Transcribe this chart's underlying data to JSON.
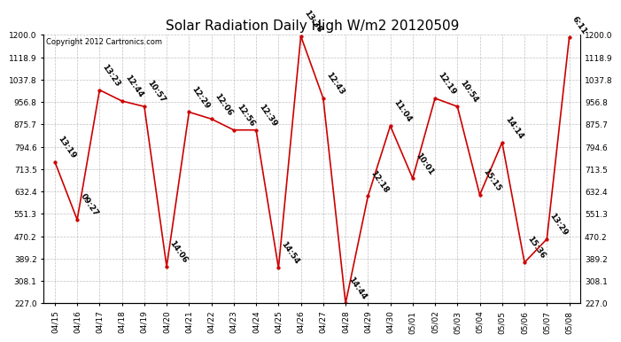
{
  "title": "Solar Radiation Daily High W/m2 20120509",
  "copyright": "Copyright 2012 Cartronics.com",
  "dates": [
    "04/15",
    "04/16",
    "04/17",
    "04/18",
    "04/19",
    "04/20",
    "04/21",
    "04/22",
    "04/23",
    "04/24",
    "04/25",
    "04/26",
    "04/27",
    "04/28",
    "04/29",
    "04/30",
    "05/01",
    "05/02",
    "05/03",
    "05/04",
    "05/05",
    "05/06",
    "05/07",
    "05/08"
  ],
  "values": [
    740,
    530,
    1000,
    960,
    940,
    360,
    920,
    895,
    855,
    855,
    355,
    1195,
    970,
    227,
    615,
    870,
    680,
    970,
    940,
    620,
    810,
    375,
    460,
    1190
  ],
  "labels": [
    "13:19",
    "09:27",
    "13:23",
    "12:44",
    "10:57",
    "14:06",
    "12:29",
    "12:06",
    "12:56",
    "12:39",
    "14:54",
    "13:38",
    "12:43",
    "14:44",
    "12:18",
    "11:04",
    "10:01",
    "12:19",
    "10:54",
    "15:15",
    "14:14",
    "15:36",
    "13:29",
    "6:11"
  ],
  "line_color": "#cc0000",
  "marker_color": "#cc0000",
  "bg_color": "#ffffff",
  "grid_color": "#b0b0b0",
  "ylim": [
    227.0,
    1200.0
  ],
  "yticks": [
    227.0,
    308.1,
    389.2,
    470.2,
    551.3,
    632.4,
    713.5,
    794.6,
    875.7,
    956.8,
    1037.8,
    1118.9,
    1200.0
  ],
  "title_fontsize": 11,
  "label_fontsize": 6.5,
  "tick_fontsize": 6.5,
  "copyright_fontsize": 6
}
